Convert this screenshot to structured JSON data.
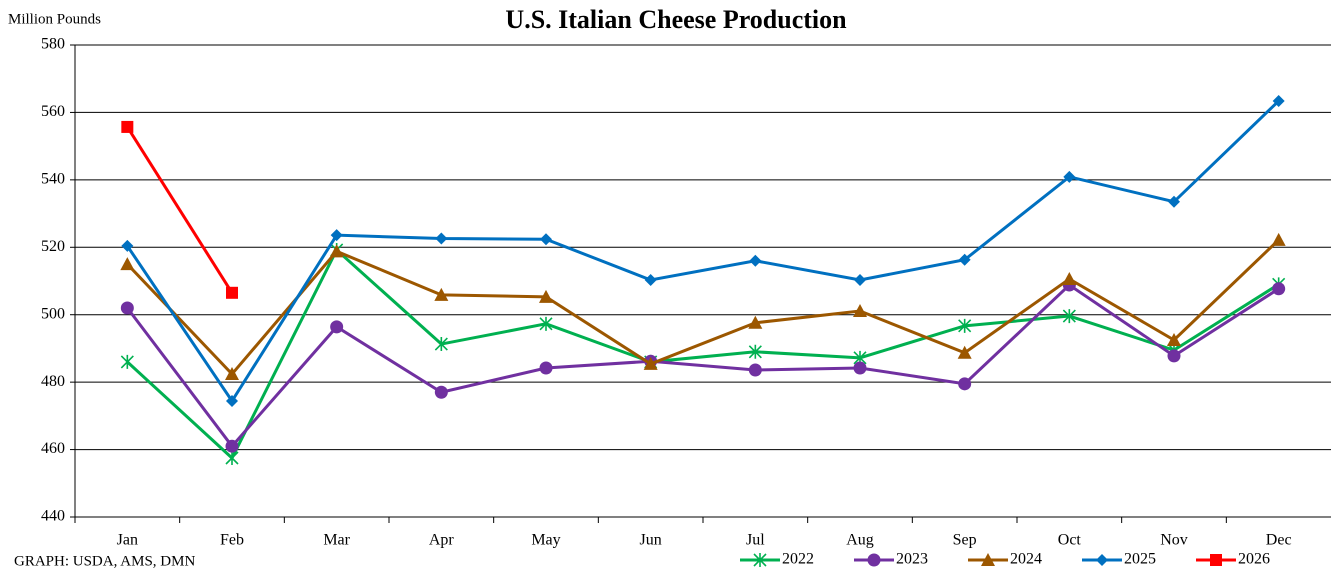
{
  "chart_data": {
    "type": "line",
    "title": "U.S. Italian Cheese Production",
    "y_label": "Million Pounds",
    "source": "GRAPH: USDA, AMS, DMN",
    "categories": [
      "Jan",
      "Feb",
      "Mar",
      "Apr",
      "May",
      "Jun",
      "Jul",
      "Aug",
      "Sep",
      "Oct",
      "Nov",
      "Dec"
    ],
    "ylim": [
      440,
      580
    ],
    "yticks": [
      440,
      460,
      480,
      500,
      520,
      540,
      560,
      580
    ],
    "grid": true,
    "legend": "bottom-right",
    "series": [
      {
        "name": "2022",
        "color": "#00b050",
        "marker": "star",
        "values": [
          486,
          457.5,
          519.2,
          491.3,
          497.3,
          486,
          489,
          487.2,
          496.7,
          499.6,
          489.5,
          509
        ]
      },
      {
        "name": "2023",
        "color": "#7030a0",
        "marker": "circle",
        "values": [
          502,
          461,
          496.4,
          477,
          484.2,
          486.2,
          483.6,
          484.2,
          479.5,
          508.8,
          487.8,
          507.7
        ]
      },
      {
        "name": "2024",
        "color": "#9c5700",
        "marker": "triangle",
        "values": [
          515,
          482.4,
          518.8,
          505.9,
          505.3,
          485.4,
          497.6,
          501.1,
          488.7,
          510.6,
          492.5,
          522.2
        ]
      },
      {
        "name": "2025",
        "color": "#0070c0",
        "marker": "diamond",
        "values": [
          520.4,
          474.4,
          523.6,
          522.6,
          522.4,
          510.3,
          516,
          510.3,
          516.3,
          540.9,
          533.5,
          563.4
        ]
      },
      {
        "name": "2026",
        "color": "#ff0000",
        "marker": "square",
        "values": [
          555.7,
          506.5,
          null,
          null,
          null,
          null,
          null,
          null,
          null,
          null,
          null,
          null
        ]
      }
    ]
  }
}
